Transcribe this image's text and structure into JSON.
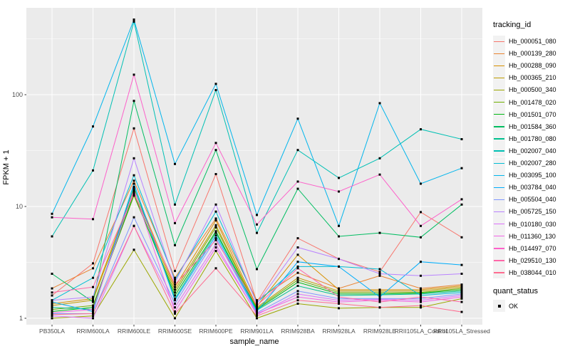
{
  "chart_data": {
    "type": "line",
    "title": "",
    "xlabel": "sample_name",
    "ylabel": "FPKM + 1",
    "y_scale": "log10",
    "ylim": [
      0.9,
      598
    ],
    "y_ticks": [
      "1",
      "10",
      "100"
    ],
    "grid": true,
    "legend_position": "right",
    "legend_title": "tracking_id",
    "quant_legend": {
      "title": "quant_status",
      "items": [
        "OK"
      ]
    },
    "point_marker": {
      "shape": "square",
      "color": "#000000"
    },
    "panel_bg": "#ebebeb",
    "categories": [
      "PB350LA",
      "RRIM600LA",
      "RRIM600LE",
      "RRIM600SE",
      "RRIM600PE",
      "RRIM901LA",
      "RRIM928BA",
      "RRIM928LA",
      "RRIM928LE",
      "RRII105LA_Control",
      "RRII105LA_Stressed"
    ],
    "series": [
      {
        "name": "Hb_000051_080",
        "color": "#F8766D",
        "values": [
          1.6,
          3.1,
          50,
          2.65,
          19.5,
          1.4,
          5.2,
          3.4,
          2.6,
          8.9,
          5.3
        ]
      },
      {
        "name": "Hb_000139_280",
        "color": "#EA8331",
        "values": [
          1.85,
          2.8,
          17,
          2.3,
          7.8,
          1.45,
          2.55,
          1.85,
          2.4,
          1.85,
          2.0
        ]
      },
      {
        "name": "Hb_000288_090",
        "color": "#D89000",
        "values": [
          1.35,
          1.5,
          14.5,
          1.9,
          7.5,
          1.28,
          3.7,
          1.8,
          1.8,
          1.8,
          1.95
        ]
      },
      {
        "name": "Hb_000365_210",
        "color": "#BE9C00",
        "values": [
          1.3,
          1.45,
          13.5,
          1.8,
          6.8,
          1.25,
          2.3,
          1.75,
          1.75,
          1.75,
          1.9
        ]
      },
      {
        "name": "Hb_000500_340",
        "color": "#9CA700",
        "values": [
          1.0,
          1.05,
          4.1,
          1.0,
          4.0,
          1.0,
          1.35,
          1.23,
          1.25,
          1.25,
          1.5
        ]
      },
      {
        "name": "Hb_001478_020",
        "color": "#6FB000",
        "values": [
          1.2,
          1.3,
          12.5,
          1.7,
          6.5,
          1.22,
          2.2,
          1.7,
          1.7,
          1.7,
          1.85
        ]
      },
      {
        "name": "Hb_001501_070",
        "color": "#00B813",
        "values": [
          1.15,
          1.25,
          13.0,
          1.6,
          6.0,
          1.2,
          2.1,
          1.65,
          1.65,
          1.68,
          1.8
        ]
      },
      {
        "name": "Hb_001584_360",
        "color": "#00BD61",
        "values": [
          2.5,
          1.4,
          88,
          4.5,
          32,
          2.75,
          14.4,
          5.4,
          5.8,
          5.3,
          10.4
        ]
      },
      {
        "name": "Hb_001780_080",
        "color": "#00C08E",
        "values": [
          1.25,
          1.2,
          15,
          1.5,
          5.8,
          1.18,
          1.95,
          1.6,
          1.62,
          1.65,
          1.75
        ]
      },
      {
        "name": "Hb_002007_040",
        "color": "#00C0B4",
        "values": [
          5.4,
          21,
          450,
          10.4,
          110,
          5.8,
          32,
          18,
          27,
          49,
          40
        ]
      },
      {
        "name": "Hb_002007_280",
        "color": "#00BDD4",
        "values": [
          1.45,
          2.3,
          19,
          2.2,
          9.0,
          1.38,
          2.9,
          2.9,
          2.75,
          1.6,
          1.7
        ]
      },
      {
        "name": "Hb_003095_100",
        "color": "#00B5EC",
        "values": [
          8.6,
          52,
          470,
          24,
          125,
          8.4,
          61,
          6.7,
          84,
          16,
          22
        ]
      },
      {
        "name": "Hb_003784_040",
        "color": "#00ADFA",
        "values": [
          1.4,
          1.15,
          16,
          1.45,
          5.5,
          1.15,
          3.2,
          2.9,
          1.55,
          3.2,
          3.0
        ]
      },
      {
        "name": "Hb_005504_040",
        "color": "#7F96FF",
        "values": [
          1.1,
          1.1,
          8.0,
          1.35,
          5.2,
          1.12,
          1.75,
          1.5,
          1.5,
          1.5,
          1.65
        ]
      },
      {
        "name": "Hb_005725_150",
        "color": "#B983FF",
        "values": [
          1.45,
          1.55,
          27,
          2.1,
          10.4,
          1.35,
          4.3,
          3.4,
          2.5,
          2.4,
          2.5
        ]
      },
      {
        "name": "Hb_010180_030",
        "color": "#DC71FA",
        "values": [
          1.05,
          1.0,
          6.7,
          1.25,
          4.6,
          1.08,
          1.65,
          1.45,
          1.48,
          1.45,
          1.6
        ]
      },
      {
        "name": "Hb_011360_130",
        "color": "#F265E7",
        "values": [
          1.12,
          1.2,
          14,
          1.15,
          4.3,
          1.1,
          1.55,
          1.4,
          1.45,
          1.4,
          1.55
        ]
      },
      {
        "name": "Hb_014497_070",
        "color": "#FD61CA",
        "values": [
          8.0,
          7.7,
          151,
          7.1,
          37,
          6.9,
          16.7,
          13.6,
          19.3,
          6.7,
          11.6
        ]
      },
      {
        "name": "Hb_029510_130",
        "color": "#FF67A8",
        "values": [
          1.7,
          1.9,
          13,
          2.0,
          5.0,
          1.3,
          2.8,
          1.55,
          1.4,
          1.55,
          1.4
        ]
      },
      {
        "name": "Hb_038044_010",
        "color": "#FF6C90",
        "values": [
          1.08,
          1.1,
          6.7,
          1.1,
          2.8,
          1.05,
          1.45,
          1.35,
          1.25,
          1.3,
          1.14
        ]
      }
    ]
  }
}
